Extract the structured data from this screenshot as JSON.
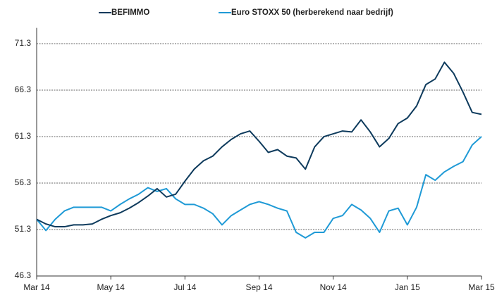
{
  "chart_data": {
    "type": "line",
    "x": [
      0,
      0.25,
      0.5,
      0.75,
      1,
      1.25,
      1.5,
      1.75,
      2,
      2.25,
      2.5,
      2.75,
      3,
      3.25,
      3.5,
      3.75,
      4,
      4.25,
      4.5,
      4.75,
      5,
      5.25,
      5.5,
      5.75,
      6,
      6.25,
      6.5,
      6.75,
      7,
      7.25,
      7.5,
      7.75,
      8,
      8.25,
      8.5,
      8.75,
      9,
      9.25,
      9.5,
      9.75,
      10,
      10.25,
      10.5,
      10.75,
      11,
      11.25,
      11.5,
      11.75,
      12
    ],
    "series": [
      {
        "name": "BEFIMMO",
        "color": "#0d3a5c",
        "values": [
          52.4,
          51.9,
          51.6,
          51.6,
          51.8,
          51.8,
          51.9,
          52.4,
          52.8,
          53.1,
          53.6,
          54.2,
          54.9,
          55.7,
          54.8,
          55.1,
          56.5,
          57.8,
          58.7,
          59.2,
          60.2,
          61.0,
          61.6,
          61.9,
          60.8,
          59.6,
          59.9,
          59.2,
          59.0,
          57.8,
          60.2,
          61.3,
          61.6,
          61.9,
          61.8,
          63.1,
          61.8,
          60.2,
          61.1,
          62.7,
          63.3,
          64.6,
          66.9,
          67.5,
          69.3,
          68.1,
          66.1,
          63.9,
          63.7
        ]
      },
      {
        "name": "Euro STOXX 50 (herberekend naar bedrijf)",
        "color": "#1f9ad6",
        "values": [
          52.4,
          51.2,
          52.4,
          53.3,
          53.7,
          53.7,
          53.7,
          53.7,
          53.3,
          54.0,
          54.6,
          55.1,
          55.8,
          55.4,
          55.7,
          54.6,
          54.0,
          54.0,
          53.6,
          53.0,
          51.8,
          52.8,
          53.4,
          54.0,
          54.3,
          54.0,
          53.6,
          53.3,
          51.0,
          50.4,
          51.0,
          51.0,
          52.5,
          52.8,
          54.0,
          53.4,
          52.5,
          51.0,
          53.3,
          53.6,
          51.8,
          53.7,
          57.2,
          56.6,
          57.5,
          58.1,
          58.6,
          60.4,
          61.3
        ]
      }
    ],
    "xlim": [
      0,
      12
    ],
    "xticks": [
      {
        "value": 0,
        "label": "Mar 14"
      },
      {
        "value": 2,
        "label": "May 14"
      },
      {
        "value": 4,
        "label": "Jul 14"
      },
      {
        "value": 6,
        "label": "Sep 14"
      },
      {
        "value": 8,
        "label": "Nov 14"
      },
      {
        "value": 10,
        "label": "Jan 15"
      },
      {
        "value": 12,
        "label": "Mar 15"
      }
    ],
    "ylim": [
      46.3,
      73
    ],
    "yticks": [
      46.3,
      51.3,
      56.3,
      61.3,
      66.3,
      71.3
    ],
    "grid": true,
    "legend": "top"
  }
}
